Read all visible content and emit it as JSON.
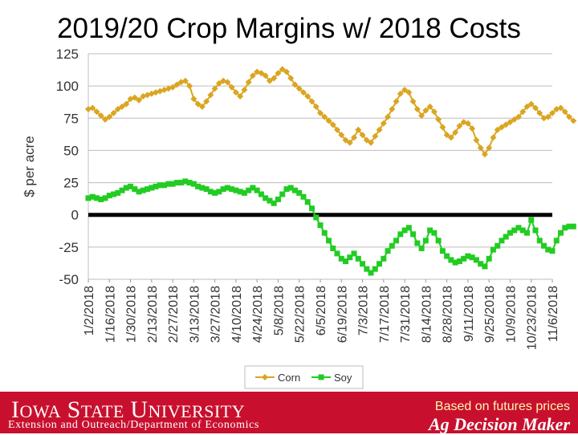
{
  "title": "2019/20 Crop Margins w/ 2018 Costs",
  "footer": {
    "university_first_big": "I",
    "university_first_small": "OWA",
    "university_second_big": "S",
    "university_second_small": "TATE",
    "university_third_big": "U",
    "university_third_small": "NIVERSITY",
    "department": "Extension and Outreach/Department of Economics",
    "note": "Based on futures prices",
    "brand": "Ag Decision Maker"
  },
  "chart_data": {
    "type": "line",
    "title": "2019/20 Crop Margins w/ 2018 Costs",
    "xlabel": "",
    "ylabel": "$ per acre",
    "ylim": [
      -50,
      125
    ],
    "yticks": [
      125,
      100,
      75,
      50,
      25,
      0,
      -25,
      -50
    ],
    "grid": true,
    "legend_position": "bottom",
    "x": [
      "1/2/2018",
      "1/16/2018",
      "1/30/2018",
      "2/13/2018",
      "2/27/2018",
      "3/13/2018",
      "3/27/2018",
      "4/10/2018",
      "4/24/2018",
      "5/8/2018",
      "5/22/2018",
      "6/5/2018",
      "6/19/2018",
      "7/3/2018",
      "7/17/2018",
      "7/31/2018",
      "8/14/2018",
      "8/28/2018",
      "9/11/2018",
      "9/25/2018",
      "10/9/2018",
      "10/23/2018",
      "11/6/2018"
    ],
    "colors": {
      "Corn": "#daa520",
      "Soy": "#22cc22",
      "zero_line": "#000000"
    },
    "series": [
      {
        "name": "Corn",
        "values": [
          [
            0,
            82
          ],
          [
            0.2,
            83
          ],
          [
            0.4,
            80
          ],
          [
            0.6,
            77
          ],
          [
            0.8,
            74
          ],
          [
            1.0,
            76
          ],
          [
            1.2,
            79
          ],
          [
            1.4,
            82
          ],
          [
            1.6,
            84
          ],
          [
            1.8,
            86
          ],
          [
            2.0,
            90
          ],
          [
            2.2,
            91
          ],
          [
            2.4,
            89
          ],
          [
            2.6,
            92
          ],
          [
            2.8,
            93
          ],
          [
            3.0,
            94
          ],
          [
            3.2,
            95
          ],
          [
            3.4,
            96
          ],
          [
            3.6,
            97
          ],
          [
            3.8,
            98
          ],
          [
            4.0,
            99
          ],
          [
            4.2,
            101
          ],
          [
            4.4,
            103
          ],
          [
            4.6,
            104
          ],
          [
            4.8,
            100
          ],
          [
            5.0,
            90
          ],
          [
            5.2,
            86
          ],
          [
            5.4,
            84
          ],
          [
            5.6,
            88
          ],
          [
            5.8,
            93
          ],
          [
            6.0,
            98
          ],
          [
            6.2,
            102
          ],
          [
            6.4,
            104
          ],
          [
            6.6,
            103
          ],
          [
            6.8,
            99
          ],
          [
            7.0,
            95
          ],
          [
            7.2,
            92
          ],
          [
            7.4,
            97
          ],
          [
            7.6,
            103
          ],
          [
            7.8,
            108
          ],
          [
            8.0,
            111
          ],
          [
            8.2,
            110
          ],
          [
            8.4,
            108
          ],
          [
            8.6,
            104
          ],
          [
            8.8,
            106
          ],
          [
            9.0,
            110
          ],
          [
            9.2,
            113
          ],
          [
            9.4,
            111
          ],
          [
            9.6,
            106
          ],
          [
            9.8,
            101
          ],
          [
            10.0,
            98
          ],
          [
            10.2,
            95
          ],
          [
            10.4,
            92
          ],
          [
            10.6,
            88
          ],
          [
            10.8,
            84
          ],
          [
            11.0,
            79
          ],
          [
            11.2,
            76
          ],
          [
            11.4,
            73
          ],
          [
            11.6,
            70
          ],
          [
            11.8,
            66
          ],
          [
            12.0,
            62
          ],
          [
            12.2,
            58
          ],
          [
            12.4,
            56
          ],
          [
            12.6,
            60
          ],
          [
            12.8,
            66
          ],
          [
            13.0,
            62
          ],
          [
            13.2,
            58
          ],
          [
            13.4,
            56
          ],
          [
            13.6,
            61
          ],
          [
            13.8,
            66
          ],
          [
            14.0,
            71
          ],
          [
            14.2,
            76
          ],
          [
            14.4,
            82
          ],
          [
            14.6,
            88
          ],
          [
            14.8,
            94
          ],
          [
            15.0,
            97
          ],
          [
            15.2,
            95
          ],
          [
            15.4,
            88
          ],
          [
            15.6,
            82
          ],
          [
            15.8,
            77
          ],
          [
            16.0,
            81
          ],
          [
            16.2,
            84
          ],
          [
            16.4,
            80
          ],
          [
            16.6,
            74
          ],
          [
            16.8,
            68
          ],
          [
            17.0,
            62
          ],
          [
            17.2,
            60
          ],
          [
            17.4,
            64
          ],
          [
            17.6,
            69
          ],
          [
            17.8,
            72
          ],
          [
            18.0,
            71
          ],
          [
            18.2,
            67
          ],
          [
            18.4,
            58
          ],
          [
            18.6,
            52
          ],
          [
            18.8,
            47
          ],
          [
            19.0,
            52
          ],
          [
            19.2,
            60
          ],
          [
            19.4,
            66
          ],
          [
            19.6,
            68
          ],
          [
            19.8,
            70
          ],
          [
            20.0,
            72
          ],
          [
            20.2,
            74
          ],
          [
            20.4,
            76
          ],
          [
            20.6,
            80
          ],
          [
            20.8,
            84
          ],
          [
            21.0,
            86
          ],
          [
            21.2,
            83
          ],
          [
            21.4,
            79
          ],
          [
            21.6,
            75
          ],
          [
            21.8,
            76
          ],
          [
            22.0,
            79
          ],
          [
            22.2,
            82
          ],
          [
            22.4,
            83
          ],
          [
            22.6,
            80
          ],
          [
            22.8,
            76
          ],
          [
            23.0,
            73
          ]
        ]
      },
      {
        "name": "Soy",
        "values": [
          [
            0,
            13
          ],
          [
            0.2,
            14
          ],
          [
            0.4,
            13
          ],
          [
            0.6,
            12
          ],
          [
            0.8,
            13
          ],
          [
            1.0,
            15
          ],
          [
            1.2,
            16
          ],
          [
            1.4,
            17
          ],
          [
            1.6,
            19
          ],
          [
            1.8,
            21
          ],
          [
            2.0,
            22
          ],
          [
            2.2,
            20
          ],
          [
            2.4,
            18
          ],
          [
            2.6,
            19
          ],
          [
            2.8,
            20
          ],
          [
            3.0,
            21
          ],
          [
            3.2,
            22
          ],
          [
            3.4,
            23
          ],
          [
            3.6,
            23
          ],
          [
            3.8,
            24
          ],
          [
            4.0,
            24
          ],
          [
            4.2,
            25
          ],
          [
            4.4,
            25
          ],
          [
            4.6,
            26
          ],
          [
            4.8,
            25
          ],
          [
            5.0,
            24
          ],
          [
            5.2,
            22
          ],
          [
            5.4,
            21
          ],
          [
            5.6,
            20
          ],
          [
            5.8,
            18
          ],
          [
            6.0,
            17
          ],
          [
            6.2,
            18
          ],
          [
            6.4,
            20
          ],
          [
            6.6,
            21
          ],
          [
            6.8,
            20
          ],
          [
            7.0,
            19
          ],
          [
            7.2,
            18
          ],
          [
            7.4,
            17
          ],
          [
            7.6,
            19
          ],
          [
            7.8,
            21
          ],
          [
            8.0,
            19
          ],
          [
            8.2,
            16
          ],
          [
            8.4,
            13
          ],
          [
            8.6,
            11
          ],
          [
            8.8,
            9
          ],
          [
            9.0,
            12
          ],
          [
            9.2,
            16
          ],
          [
            9.4,
            20
          ],
          [
            9.6,
            21
          ],
          [
            9.8,
            19
          ],
          [
            10.0,
            17
          ],
          [
            10.2,
            14
          ],
          [
            10.4,
            10
          ],
          [
            10.6,
            5
          ],
          [
            10.8,
            -2
          ],
          [
            11.0,
            -8
          ],
          [
            11.2,
            -14
          ],
          [
            11.4,
            -20
          ],
          [
            11.6,
            -26
          ],
          [
            11.8,
            -30
          ],
          [
            12.0,
            -34
          ],
          [
            12.2,
            -36
          ],
          [
            12.4,
            -33
          ],
          [
            12.6,
            -30
          ],
          [
            12.8,
            -34
          ],
          [
            13.0,
            -38
          ],
          [
            13.2,
            -42
          ],
          [
            13.4,
            -45
          ],
          [
            13.6,
            -42
          ],
          [
            13.8,
            -38
          ],
          [
            14.0,
            -34
          ],
          [
            14.2,
            -28
          ],
          [
            14.4,
            -24
          ],
          [
            14.6,
            -20
          ],
          [
            14.8,
            -15
          ],
          [
            15.0,
            -12
          ],
          [
            15.2,
            -10
          ],
          [
            15.4,
            -15
          ],
          [
            15.6,
            -22
          ],
          [
            15.8,
            -26
          ],
          [
            16.0,
            -20
          ],
          [
            16.2,
            -12
          ],
          [
            16.4,
            -14
          ],
          [
            16.6,
            -20
          ],
          [
            16.8,
            -28
          ],
          [
            17.0,
            -32
          ],
          [
            17.2,
            -35
          ],
          [
            17.4,
            -37
          ],
          [
            17.6,
            -36
          ],
          [
            17.8,
            -34
          ],
          [
            18.0,
            -32
          ],
          [
            18.2,
            -33
          ],
          [
            18.4,
            -35
          ],
          [
            18.6,
            -38
          ],
          [
            18.8,
            -40
          ],
          [
            19.0,
            -34
          ],
          [
            19.2,
            -27
          ],
          [
            19.4,
            -24
          ],
          [
            19.6,
            -20
          ],
          [
            19.8,
            -17
          ],
          [
            20.0,
            -14
          ],
          [
            20.2,
            -12
          ],
          [
            20.4,
            -10
          ],
          [
            20.6,
            -12
          ],
          [
            20.8,
            -14
          ],
          [
            21.0,
            -4
          ],
          [
            21.2,
            -12
          ],
          [
            21.4,
            -20
          ],
          [
            21.6,
            -24
          ],
          [
            21.8,
            -27
          ],
          [
            22.0,
            -28
          ],
          [
            22.2,
            -20
          ],
          [
            22.4,
            -14
          ],
          [
            22.6,
            -10
          ],
          [
            22.8,
            -9
          ],
          [
            23.0,
            -9
          ]
        ]
      }
    ]
  }
}
